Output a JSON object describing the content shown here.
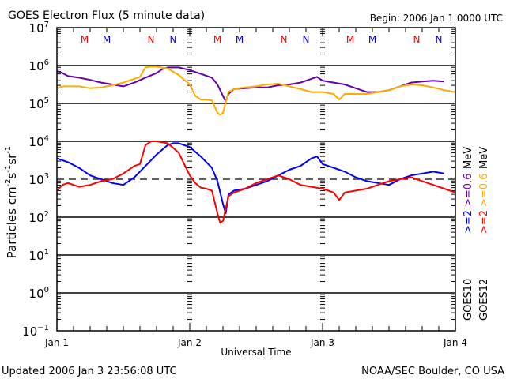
{
  "chart_data": {
    "type": "line",
    "title": "GOES Electron Flux (5 minute data)",
    "begin_label": "Begin: 2006 Jan 1 0000 UTC",
    "xlabel": "Universal Time",
    "ylabel": "Particles cm",
    "ylabel_parts": [
      "Particles cm",
      "-2",
      "s",
      "-1",
      "sr",
      "-1"
    ],
    "x_unit": "hours since 2006 Jan 1 0000 UTC",
    "xlim": [
      0,
      72
    ],
    "x_ticks": [
      {
        "hour": 0,
        "label": "Jan 1"
      },
      {
        "hour": 24,
        "label": "Jan 2"
      },
      {
        "hour": 48,
        "label": "Jan 3"
      },
      {
        "hour": 72,
        "label": "Jan 4"
      }
    ],
    "yscale": "log",
    "ylim_exp": [
      -1,
      7
    ],
    "y_ticks": [
      {
        "exp": 7,
        "base": "10",
        "sup": "7"
      },
      {
        "exp": 6,
        "base": "10",
        "sup": "6"
      },
      {
        "exp": 5,
        "base": "10",
        "sup": "5"
      },
      {
        "exp": 4,
        "base": "10",
        "sup": "4"
      },
      {
        "exp": 3,
        "base": "10",
        "sup": "3"
      },
      {
        "exp": 2,
        "base": "10",
        "sup": "2"
      },
      {
        "exp": 1,
        "base": "10",
        "sup": "1"
      },
      {
        "exp": 0,
        "base": "10",
        "sup": "0"
      },
      {
        "exp": -1,
        "base": "10",
        "sup": "−1"
      }
    ],
    "gridlines_exp": [
      6,
      5,
      4,
      2,
      1,
      0
    ],
    "threshold_exp": 3,
    "markers": [
      {
        "hour": 5,
        "label": "M",
        "color": "#ff0000"
      },
      {
        "hour": 9,
        "label": "M",
        "color": "#0000ff"
      },
      {
        "hour": 17,
        "label": "N",
        "color": "#ff0000"
      },
      {
        "hour": 21,
        "label": "N",
        "color": "#0000ff"
      },
      {
        "hour": 29,
        "label": "M",
        "color": "#ff0000"
      },
      {
        "hour": 33,
        "label": "M",
        "color": "#0000ff"
      },
      {
        "hour": 41,
        "label": "N",
        "color": "#ff0000"
      },
      {
        "hour": 45,
        "label": "N",
        "color": "#0000ff"
      },
      {
        "hour": 53,
        "label": "M",
        "color": "#ff0000"
      },
      {
        "hour": 57,
        "label": "M",
        "color": "#0000ff"
      },
      {
        "hour": 65,
        "label": "N",
        "color": "#ff0000"
      },
      {
        "hour": 69,
        "label": "N",
        "color": "#0000ff"
      }
    ],
    "legend": [
      {
        "sat": "GOES10",
        "items": [
          {
            "label": ">=2",
            "color": "#0000ff"
          },
          {
            "label": ">=0.6",
            "color": "#6600aa"
          },
          {
            "label": "MeV",
            "color": "#000000"
          }
        ]
      },
      {
        "sat": "GOES12",
        "items": [
          {
            "label": ">=2",
            "color": "#ff0000"
          },
          {
            "label": ">=0.6",
            "color": "#ffaa00"
          },
          {
            "label": "MeV",
            "color": "#000000"
          }
        ]
      }
    ],
    "series": [
      {
        "name": "GOES10 >=0.6 MeV",
        "color": "#6600aa",
        "hours": [
          0,
          1,
          2,
          4,
          6,
          8,
          10,
          12,
          14,
          16,
          18,
          19,
          20,
          22,
          24,
          26,
          28,
          29,
          30,
          30.5,
          31,
          32,
          34,
          36,
          38,
          40,
          42,
          44,
          46,
          47,
          48,
          50,
          52,
          54,
          56,
          58,
          60,
          62,
          64,
          66,
          68,
          70
        ],
        "log10": [
          5.85,
          5.8,
          5.72,
          5.68,
          5.62,
          5.55,
          5.5,
          5.45,
          5.55,
          5.68,
          5.8,
          5.9,
          5.95,
          5.95,
          5.88,
          5.78,
          5.68,
          5.5,
          5.2,
          5.05,
          5.25,
          5.38,
          5.4,
          5.42,
          5.42,
          5.48,
          5.5,
          5.55,
          5.65,
          5.7,
          5.6,
          5.55,
          5.5,
          5.4,
          5.3,
          5.3,
          5.35,
          5.45,
          5.55,
          5.58,
          5.6,
          5.58
        ]
      },
      {
        "name": "GOES12 >=0.6 MeV",
        "color": "#ffaa00",
        "hours": [
          0,
          1,
          2,
          4,
          6,
          8,
          10,
          12,
          14,
          15,
          16,
          17,
          18,
          20,
          22,
          24,
          25,
          26,
          27,
          28,
          29,
          29.5,
          30,
          31,
          32,
          34,
          36,
          38,
          40,
          42,
          44,
          46,
          48,
          50,
          51,
          52,
          54,
          56,
          58,
          60,
          62,
          64,
          66,
          68,
          70,
          72
        ],
        "log10": [
          5.4,
          5.45,
          5.45,
          5.45,
          5.4,
          5.42,
          5.48,
          5.55,
          5.65,
          5.7,
          5.95,
          5.97,
          5.97,
          5.92,
          5.75,
          5.5,
          5.2,
          5.1,
          5.1,
          5.08,
          4.75,
          4.7,
          4.75,
          5.3,
          5.38,
          5.42,
          5.45,
          5.5,
          5.52,
          5.45,
          5.38,
          5.3,
          5.3,
          5.25,
          5.1,
          5.25,
          5.25,
          5.25,
          5.3,
          5.35,
          5.45,
          5.5,
          5.48,
          5.42,
          5.35,
          5.3
        ]
      },
      {
        "name": "GOES10 >=2 MeV",
        "color": "#0000ff",
        "hours": [
          0,
          1,
          2,
          4,
          6,
          8,
          10,
          12,
          14,
          16,
          18,
          20,
          21,
          22,
          24,
          26,
          28,
          29,
          30,
          30.5,
          31,
          32,
          34,
          36,
          38,
          40,
          42,
          44,
          46,
          47,
          48,
          50,
          52,
          54,
          56,
          58,
          60,
          62,
          64,
          66,
          68,
          70
        ],
        "log10": [
          3.55,
          3.5,
          3.45,
          3.3,
          3.1,
          3.0,
          2.9,
          2.85,
          3.05,
          3.35,
          3.65,
          3.9,
          3.95,
          3.95,
          3.85,
          3.6,
          3.3,
          2.95,
          2.35,
          2.1,
          2.6,
          2.7,
          2.75,
          2.85,
          2.95,
          3.1,
          3.25,
          3.35,
          3.55,
          3.6,
          3.4,
          3.3,
          3.2,
          3.05,
          2.95,
          2.9,
          2.85,
          3.0,
          3.1,
          3.15,
          3.2,
          3.15
        ]
      },
      {
        "name": "GOES12 >=2 MeV",
        "color": "#ff0000",
        "hours": [
          0,
          1,
          2,
          4,
          6,
          8,
          10,
          12,
          14,
          15,
          16,
          17,
          18,
          20,
          22,
          24,
          25,
          26,
          27,
          28,
          29,
          29.5,
          30,
          31,
          32,
          34,
          36,
          38,
          40,
          42,
          44,
          46,
          48,
          50,
          51,
          52,
          54,
          56,
          58,
          60,
          62,
          64,
          66,
          68,
          70,
          72
        ],
        "log10": [
          2.7,
          2.85,
          2.9,
          2.8,
          2.85,
          2.95,
          3.0,
          3.15,
          3.35,
          3.4,
          3.9,
          4.0,
          4.0,
          3.95,
          3.7,
          3.1,
          2.9,
          2.78,
          2.75,
          2.7,
          2.1,
          1.85,
          1.9,
          2.55,
          2.65,
          2.75,
          2.9,
          3.0,
          3.1,
          3.0,
          2.85,
          2.8,
          2.75,
          2.65,
          2.45,
          2.65,
          2.7,
          2.75,
          2.85,
          2.95,
          3.0,
          3.05,
          2.95,
          2.85,
          2.75,
          2.65
        ]
      }
    ]
  },
  "footer": {
    "updated": "Updated 2006 Jan  3 23:56:08 UTC",
    "source": "NOAA/SEC Boulder, CO USA"
  }
}
